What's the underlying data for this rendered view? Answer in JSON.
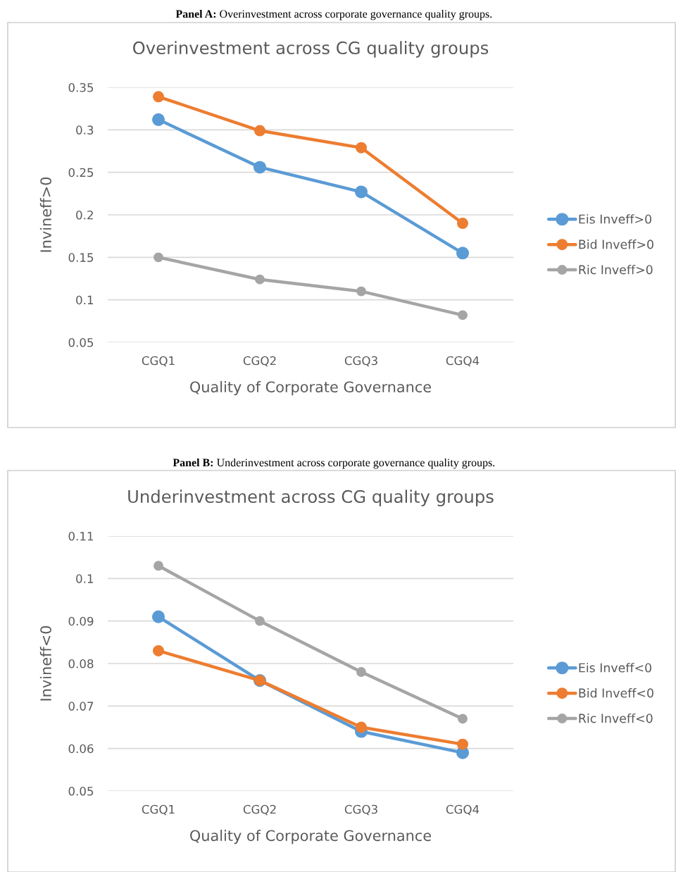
{
  "chart_data": [
    {
      "type": "line",
      "title": "Overinvestment across CG quality groups",
      "xlabel": "Quality of Corporate Governance",
      "ylabel": "Invineff>0",
      "annotations": [
        "Panel A: Overinvestment across corporate governance quality groups."
      ],
      "categories": [
        "CGQ1",
        "CGQ2",
        "CGQ3",
        "CGQ4"
      ],
      "series": [
        {
          "name": "Eis Inveff>0",
          "color": "#5b9bd5",
          "values": [
            0.312,
            0.256,
            0.227,
            0.155
          ]
        },
        {
          "name": "Bid Inveff>0",
          "color": "#ed7d31",
          "values": [
            0.339,
            0.299,
            0.279,
            0.19
          ]
        },
        {
          "name": "Ric Inveff>0",
          "color": "#a5a5a5",
          "values": [
            0.15,
            0.124,
            0.11,
            0.082
          ]
        }
      ],
      "ylim": [
        0.05,
        0.35
      ],
      "yticks": [
        0.05,
        0.1,
        0.15,
        0.2,
        0.25,
        0.3,
        0.35
      ],
      "grid": "y",
      "legend": "right",
      "marker": "circle",
      "line_style": "solid"
    },
    {
      "type": "line",
      "title": "Underinvestment across CG quality groups",
      "xlabel": "Quality of Corporate Governance",
      "ylabel": "Invineff<0",
      "annotations": [
        "Panel B: Underinvestment across corporate governance quality groups."
      ],
      "categories": [
        "CGQ1",
        "CGQ2",
        "CGQ3",
        "CGQ4"
      ],
      "series": [
        {
          "name": "Eis Inveff<0",
          "color": "#5b9bd5",
          "values": [
            0.091,
            0.076,
            0.064,
            0.059
          ]
        },
        {
          "name": "Bid Inveff<0",
          "color": "#ed7d31",
          "values": [
            0.083,
            0.076,
            0.065,
            0.061
          ]
        },
        {
          "name": "Ric Inveff<0",
          "color": "#a5a5a5",
          "values": [
            0.103,
            0.09,
            0.078,
            0.067
          ]
        }
      ],
      "ylim": [
        0.05,
        0.11
      ],
      "yticks": [
        0.05,
        0.06,
        0.07,
        0.08,
        0.09,
        0.1,
        0.11
      ],
      "grid": "y",
      "legend": "right",
      "marker": "circle",
      "line_style": "solid"
    }
  ]
}
